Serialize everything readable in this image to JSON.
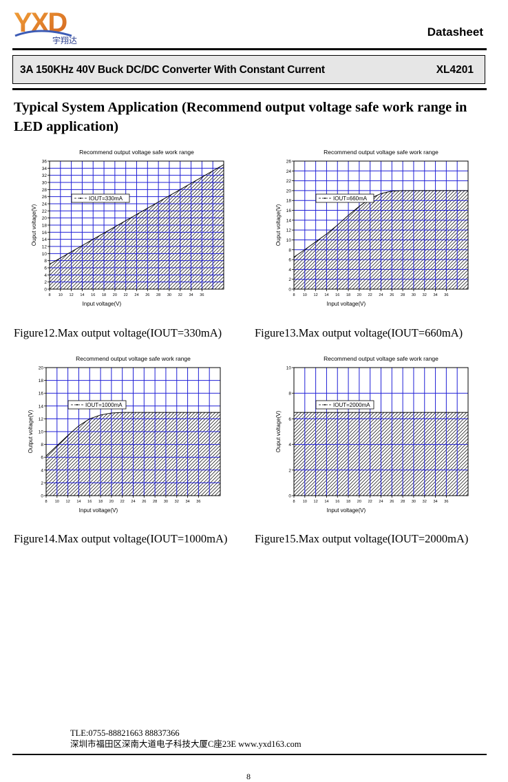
{
  "header": {
    "logo_text": "YXD",
    "logo_subtext": "宇翔达",
    "doc_type": "Datasheet",
    "title": "3A 150KHz 40V Buck DC/DC Converter With Constant Current",
    "part_number": "XL4201"
  },
  "section": {
    "heading": "Typical System Application (Recommend output voltage safe work range in LED application)"
  },
  "figures": [
    {
      "caption": "Figure12.Max output voltage(IOUT=330mA)"
    },
    {
      "caption": "Figure13.Max output voltage(IOUT=660mA)"
    },
    {
      "caption": "Figure14.Max output voltage(IOUT=1000mA)"
    },
    {
      "caption": "Figure15.Max output voltage(IOUT=2000mA)"
    }
  ],
  "chart_data": [
    {
      "type": "area",
      "title": "Recommend output voltage safe work range",
      "xlabel": "Input voltage(V)",
      "ylabel": "Ouput voltage(V)",
      "xlim": [
        8,
        40
      ],
      "ylim": [
        0,
        36
      ],
      "xticks": [
        8,
        10,
        12,
        14,
        16,
        18,
        20,
        22,
        24,
        26,
        28,
        30,
        32,
        34,
        36
      ],
      "yticks": [
        0,
        2,
        4,
        6,
        8,
        10,
        12,
        14,
        16,
        18,
        20,
        22,
        24,
        26,
        28,
        30,
        32,
        34,
        36
      ],
      "grid": true,
      "legend_position": "upper-left",
      "series": [
        {
          "name": "IOUT=330mA",
          "x": [
            8,
            40
          ],
          "y": [
            7,
            35
          ]
        }
      ]
    },
    {
      "type": "area",
      "title": "Recommend output voltage safe work range",
      "xlabel": "Input voltage(V)",
      "ylabel": "Ouput voltage(V)",
      "xlim": [
        8,
        40
      ],
      "ylim": [
        0,
        26
      ],
      "xticks": [
        8,
        10,
        12,
        14,
        16,
        18,
        20,
        22,
        24,
        26,
        28,
        30,
        32,
        34,
        36
      ],
      "yticks": [
        0,
        2,
        4,
        6,
        8,
        10,
        12,
        14,
        16,
        18,
        20,
        22,
        24,
        26
      ],
      "grid": true,
      "legend_position": "upper-left",
      "series": [
        {
          "name": "IOUT=660mA",
          "x": [
            8,
            10,
            12,
            14,
            16,
            18,
            20,
            22,
            24,
            26,
            28,
            40
          ],
          "y": [
            6.5,
            8,
            9.6,
            11.2,
            13,
            15,
            16.8,
            18.4,
            19.4,
            19.9,
            20,
            20
          ]
        }
      ]
    },
    {
      "type": "area",
      "title": "Recommend output voltage safe work range",
      "xlabel": "Input voltage(V)",
      "ylabel": "Output voltage(V)",
      "xlim": [
        8,
        40
      ],
      "ylim": [
        0,
        20
      ],
      "xticks": [
        8,
        10,
        12,
        14,
        16,
        18,
        20,
        22,
        24,
        26,
        28,
        30,
        32,
        34,
        36
      ],
      "yticks": [
        0,
        2,
        4,
        6,
        8,
        10,
        12,
        14,
        16,
        18,
        20
      ],
      "grid": true,
      "legend_position": "upper-left",
      "series": [
        {
          "name": "IOUT=1000mA",
          "x": [
            8,
            10,
            12,
            14,
            16,
            18,
            20,
            22,
            24,
            40
          ],
          "y": [
            6.2,
            7.8,
            9.4,
            10.9,
            12,
            12.6,
            12.9,
            13,
            13,
            13
          ]
        }
      ]
    },
    {
      "type": "area",
      "title": "Recommend output voltage safe work range",
      "xlabel": "Input voltage(V)",
      "ylabel": "Ouput voltage(V)",
      "xlim": [
        8,
        40
      ],
      "ylim": [
        0,
        10
      ],
      "xticks": [
        8,
        10,
        12,
        14,
        16,
        18,
        20,
        22,
        24,
        26,
        28,
        30,
        32,
        34,
        36
      ],
      "yticks": [
        0,
        2,
        4,
        6,
        8,
        10
      ],
      "grid": true,
      "legend_position": "upper-left",
      "series": [
        {
          "name": "IOUT=2000mA",
          "x": [
            8,
            40
          ],
          "y": [
            6.5,
            6.5
          ]
        }
      ]
    }
  ],
  "footer": {
    "contact_line1": "TLE:0755-88821663  88837366",
    "contact_line2": "深圳市福田区深南大道电子科技大厦C座23E   www.yxd163.com",
    "page_number": "8"
  },
  "colors": {
    "grid": "#1f1fd6",
    "hatch": "#000000",
    "title_bar": "#e6e6e6"
  }
}
